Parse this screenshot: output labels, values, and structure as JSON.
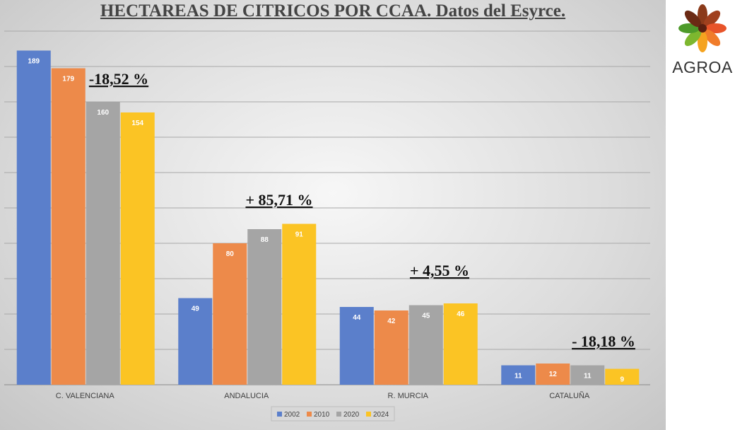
{
  "chart_data": {
    "type": "bar",
    "title": "HECTAREAS DE CITRICOS POR CCAA. Datos del Esyrce.",
    "categories": [
      "C. VALENCIANA",
      "ANDALUCIA",
      "R. MURCIA",
      "CATALUÑA"
    ],
    "series": [
      {
        "name": "2002",
        "color": "#5B7FCB",
        "values": [
          189,
          49,
          44,
          11
        ]
      },
      {
        "name": "2010",
        "color": "#ED8A4A",
        "values": [
          179,
          80,
          42,
          12
        ]
      },
      {
        "name": "2020",
        "color": "#A5A5A5",
        "values": [
          160,
          88,
          45,
          11
        ]
      },
      {
        "name": "2024",
        "color": "#FBC424",
        "values": [
          154,
          91,
          46,
          9
        ]
      }
    ],
    "annotations": [
      "-18,52 %",
      "+ 85,71 %",
      "+ 4,55 %",
      "- 18,18 %"
    ],
    "ylim": [
      0,
      200
    ],
    "grid": true,
    "legend": "bottom"
  },
  "logo": {
    "text": "AGROA"
  }
}
